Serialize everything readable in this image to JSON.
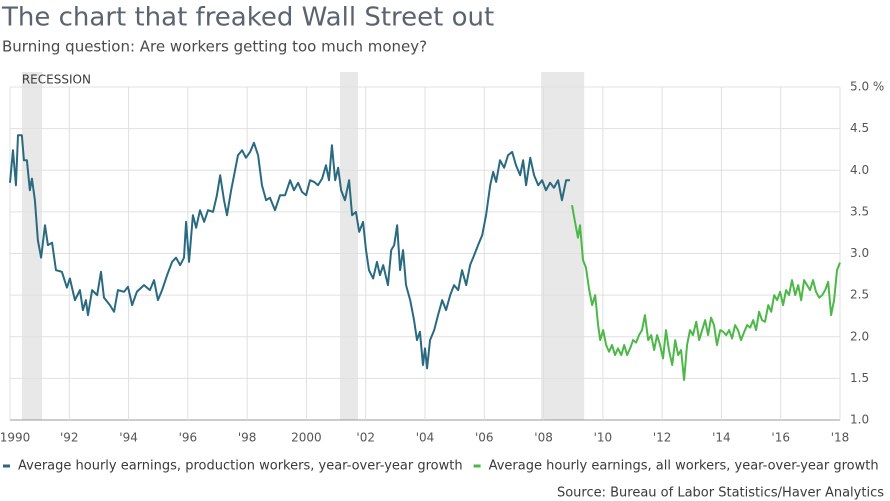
{
  "chart_data": {
    "type": "line",
    "title": "The chart that freaked Wall Street out",
    "subtitle": "Burning question: Are workers getting too much money?",
    "source": "Source: Bureau of Labor Statistics/Haver Analytics",
    "recession_label": "RECESSION",
    "recessions": [
      [
        1990.4,
        1991.08
      ],
      [
        2001.13,
        2001.74
      ],
      [
        2007.92,
        2009.37
      ]
    ],
    "recession_color": "#e8e8e8",
    "xlim": [
      1990,
      2018
    ],
    "xticks": [
      1990,
      {
        "value": 1992,
        "label": "'92"
      },
      {
        "value": 1994,
        "label": "'94"
      },
      {
        "value": 1996,
        "label": "'96"
      },
      {
        "value": 1998,
        "label": "'98"
      },
      2000,
      {
        "value": 2002,
        "label": "'02"
      },
      {
        "value": 2004,
        "label": "'04"
      },
      {
        "value": 2006,
        "label": "'06"
      },
      {
        "value": 2008,
        "label": "'08"
      },
      {
        "value": 2010,
        "label": "'10"
      },
      {
        "value": 2012,
        "label": "'12"
      },
      {
        "value": 2014,
        "label": "'14"
      },
      {
        "value": 2016,
        "label": "'16"
      },
      {
        "value": 2018,
        "label": "'18"
      }
    ],
    "ylim": [
      1,
      5
    ],
    "yticks": [
      {
        "value": 1,
        "label": "1.0"
      },
      {
        "value": 1.5,
        "label": "1.5"
      },
      {
        "value": 2,
        "label": "2.0"
      },
      {
        "value": 2.5,
        "label": "2.5"
      },
      {
        "value": 3,
        "label": "3.0"
      },
      {
        "value": 3.5,
        "label": "3.5"
      },
      {
        "value": 4,
        "label": "4.0"
      },
      {
        "value": 4.5,
        "label": "4.5"
      },
      {
        "value": 5,
        "label": "5.0 %"
      }
    ],
    "grid": true,
    "series": [
      {
        "name": "Average hourly earnings, production workers, year-over-year growth",
        "color": "#2a6a80",
        "x": [
          1990.0,
          1990.1,
          1990.2,
          1990.27,
          1990.4,
          1990.47,
          1990.57,
          1990.67,
          1990.74,
          1990.84,
          1990.94,
          1991.05,
          1991.18,
          1991.28,
          1991.42,
          1991.55,
          1991.75,
          1991.92,
          1992.02,
          1992.19,
          1992.36,
          1992.46,
          1992.56,
          1992.63,
          1992.77,
          1992.94,
          1993.07,
          1993.17,
          1993.37,
          1993.51,
          1993.64,
          1993.85,
          1993.98,
          1994.12,
          1994.28,
          1994.52,
          1994.72,
          1994.86,
          1994.99,
          1995.13,
          1995.3,
          1995.47,
          1995.6,
          1995.74,
          1995.87,
          1995.94,
          1996.04,
          1996.17,
          1996.28,
          1996.41,
          1996.55,
          1996.68,
          1996.85,
          1996.98,
          1997.09,
          1997.22,
          1997.32,
          1997.46,
          1997.56,
          1997.69,
          1997.83,
          1997.96,
          1998.1,
          1998.23,
          1998.37,
          1998.5,
          1998.64,
          1998.77,
          1998.94,
          1999.11,
          1999.28,
          1999.45,
          1999.58,
          1999.72,
          1999.85,
          1999.99,
          2000.12,
          2000.26,
          2000.39,
          2000.53,
          2000.66,
          2000.76,
          2000.86,
          2000.97,
          2001.07,
          2001.17,
          2001.3,
          2001.44,
          2001.54,
          2001.67,
          2001.78,
          2001.91,
          2002.01,
          2002.11,
          2002.25,
          2002.38,
          2002.48,
          2002.59,
          2002.75,
          2002.86,
          2002.96,
          2003.06,
          2003.16,
          2003.26,
          2003.36,
          2003.5,
          2003.63,
          2003.73,
          2003.83,
          2003.93,
          2004.0,
          2004.07,
          2004.17,
          2004.31,
          2004.44,
          2004.58,
          2004.71,
          2004.85,
          2004.98,
          2005.12,
          2005.25,
          2005.39,
          2005.52,
          2005.66,
          2005.79,
          2005.93,
          2006.06,
          2006.2,
          2006.3,
          2006.4,
          2006.53,
          2006.67,
          2006.8,
          2006.94,
          2007.07,
          2007.21,
          2007.31,
          2007.41,
          2007.55,
          2007.68,
          2007.82,
          2007.95,
          2008.08,
          2008.22,
          2008.35,
          2008.49,
          2008.62,
          2008.76,
          2008.89
        ],
        "values": [
          3.85,
          4.24,
          3.82,
          4.42,
          4.42,
          4.12,
          4.12,
          3.76,
          3.9,
          3.64,
          3.16,
          2.95,
          3.34,
          3.1,
          3.13,
          2.8,
          2.78,
          2.59,
          2.7,
          2.44,
          2.56,
          2.32,
          2.44,
          2.26,
          2.56,
          2.5,
          2.78,
          2.47,
          2.38,
          2.3,
          2.56,
          2.54,
          2.6,
          2.38,
          2.54,
          2.62,
          2.56,
          2.68,
          2.44,
          2.56,
          2.74,
          2.9,
          2.95,
          2.86,
          2.95,
          3.38,
          2.9,
          3.46,
          3.31,
          3.52,
          3.38,
          3.52,
          3.5,
          3.7,
          3.94,
          3.64,
          3.46,
          3.76,
          3.94,
          4.18,
          4.24,
          4.15,
          4.22,
          4.33,
          4.18,
          3.82,
          3.64,
          3.67,
          3.52,
          3.7,
          3.7,
          3.88,
          3.76,
          3.85,
          3.74,
          3.7,
          3.88,
          3.86,
          3.82,
          3.9,
          4.06,
          3.88,
          4.3,
          3.88,
          4.03,
          3.76,
          3.64,
          3.88,
          3.46,
          3.5,
          3.26,
          3.38,
          3.04,
          2.8,
          2.7,
          2.9,
          2.74,
          2.86,
          2.62,
          3.04,
          3.1,
          3.34,
          2.8,
          3.04,
          2.62,
          2.44,
          2.2,
          1.96,
          2.06,
          1.66,
          1.86,
          1.62,
          1.96,
          2.08,
          2.26,
          2.44,
          2.32,
          2.5,
          2.62,
          2.56,
          2.8,
          2.62,
          2.86,
          2.98,
          3.1,
          3.22,
          3.46,
          3.82,
          3.98,
          3.86,
          4.12,
          4.03,
          4.18,
          4.22,
          4.06,
          3.94,
          4.12,
          3.82,
          4.15,
          3.94,
          3.82,
          3.88,
          3.76,
          3.85,
          3.79,
          3.88,
          3.64,
          3.88,
          3.88
        ]
      },
      {
        "name": "Average hourly earnings, all workers, year-over-year growth",
        "color": "#4cb848",
        "x": [
          2008.96,
          2009.06,
          2009.16,
          2009.23,
          2009.33,
          2009.43,
          2009.54,
          2009.64,
          2009.74,
          2009.84,
          2009.91,
          2010.01,
          2010.11,
          2010.21,
          2010.31,
          2010.41,
          2010.51,
          2010.62,
          2010.72,
          2010.82,
          2010.92,
          2011.02,
          2011.12,
          2011.22,
          2011.32,
          2011.42,
          2011.53,
          2011.63,
          2011.73,
          2011.83,
          2011.93,
          2012.03,
          2012.13,
          2012.23,
          2012.34,
          2012.44,
          2012.54,
          2012.64,
          2012.74,
          2012.84,
          2012.94,
          2013.04,
          2013.15,
          2013.25,
          2013.35,
          2013.45,
          2013.55,
          2013.65,
          2013.75,
          2013.85,
          2013.96,
          2014.06,
          2014.16,
          2014.26,
          2014.36,
          2014.46,
          2014.56,
          2014.66,
          2014.77,
          2014.87,
          2014.97,
          2015.07,
          2015.17,
          2015.27,
          2015.37,
          2015.47,
          2015.58,
          2015.68,
          2015.78,
          2015.88,
          2015.98,
          2016.08,
          2016.18,
          2016.28,
          2016.38,
          2016.49,
          2016.59,
          2016.69,
          2016.79,
          2016.89,
          2016.99,
          2017.09,
          2017.19,
          2017.3,
          2017.4,
          2017.5,
          2017.6,
          2017.7,
          2017.8,
          2017.9,
          2018.0
        ],
        "values": [
          3.58,
          3.38,
          3.19,
          3.34,
          2.92,
          2.83,
          2.56,
          2.38,
          2.5,
          2.14,
          1.96,
          2.08,
          1.9,
          1.82,
          1.9,
          1.78,
          1.86,
          1.78,
          1.9,
          1.78,
          1.86,
          1.96,
          1.93,
          2.02,
          2.08,
          2.26,
          1.96,
          2.02,
          1.84,
          2.02,
          1.9,
          1.74,
          2.08,
          1.84,
          1.66,
          1.96,
          1.78,
          1.84,
          1.48,
          1.9,
          2.08,
          2.02,
          2.18,
          1.96,
          2.08,
          2.2,
          2.02,
          2.23,
          2.14,
          1.9,
          2.08,
          2.06,
          2.02,
          2.08,
          1.98,
          2.14,
          2.08,
          1.96,
          2.06,
          2.14,
          2.11,
          2.2,
          2.08,
          2.3,
          2.2,
          2.18,
          2.38,
          2.3,
          2.5,
          2.44,
          2.54,
          2.38,
          2.56,
          2.5,
          2.68,
          2.5,
          2.62,
          2.44,
          2.68,
          2.62,
          2.56,
          2.68,
          2.54,
          2.47,
          2.5,
          2.56,
          2.66,
          2.26,
          2.44,
          2.8,
          2.89
        ]
      }
    ]
  }
}
